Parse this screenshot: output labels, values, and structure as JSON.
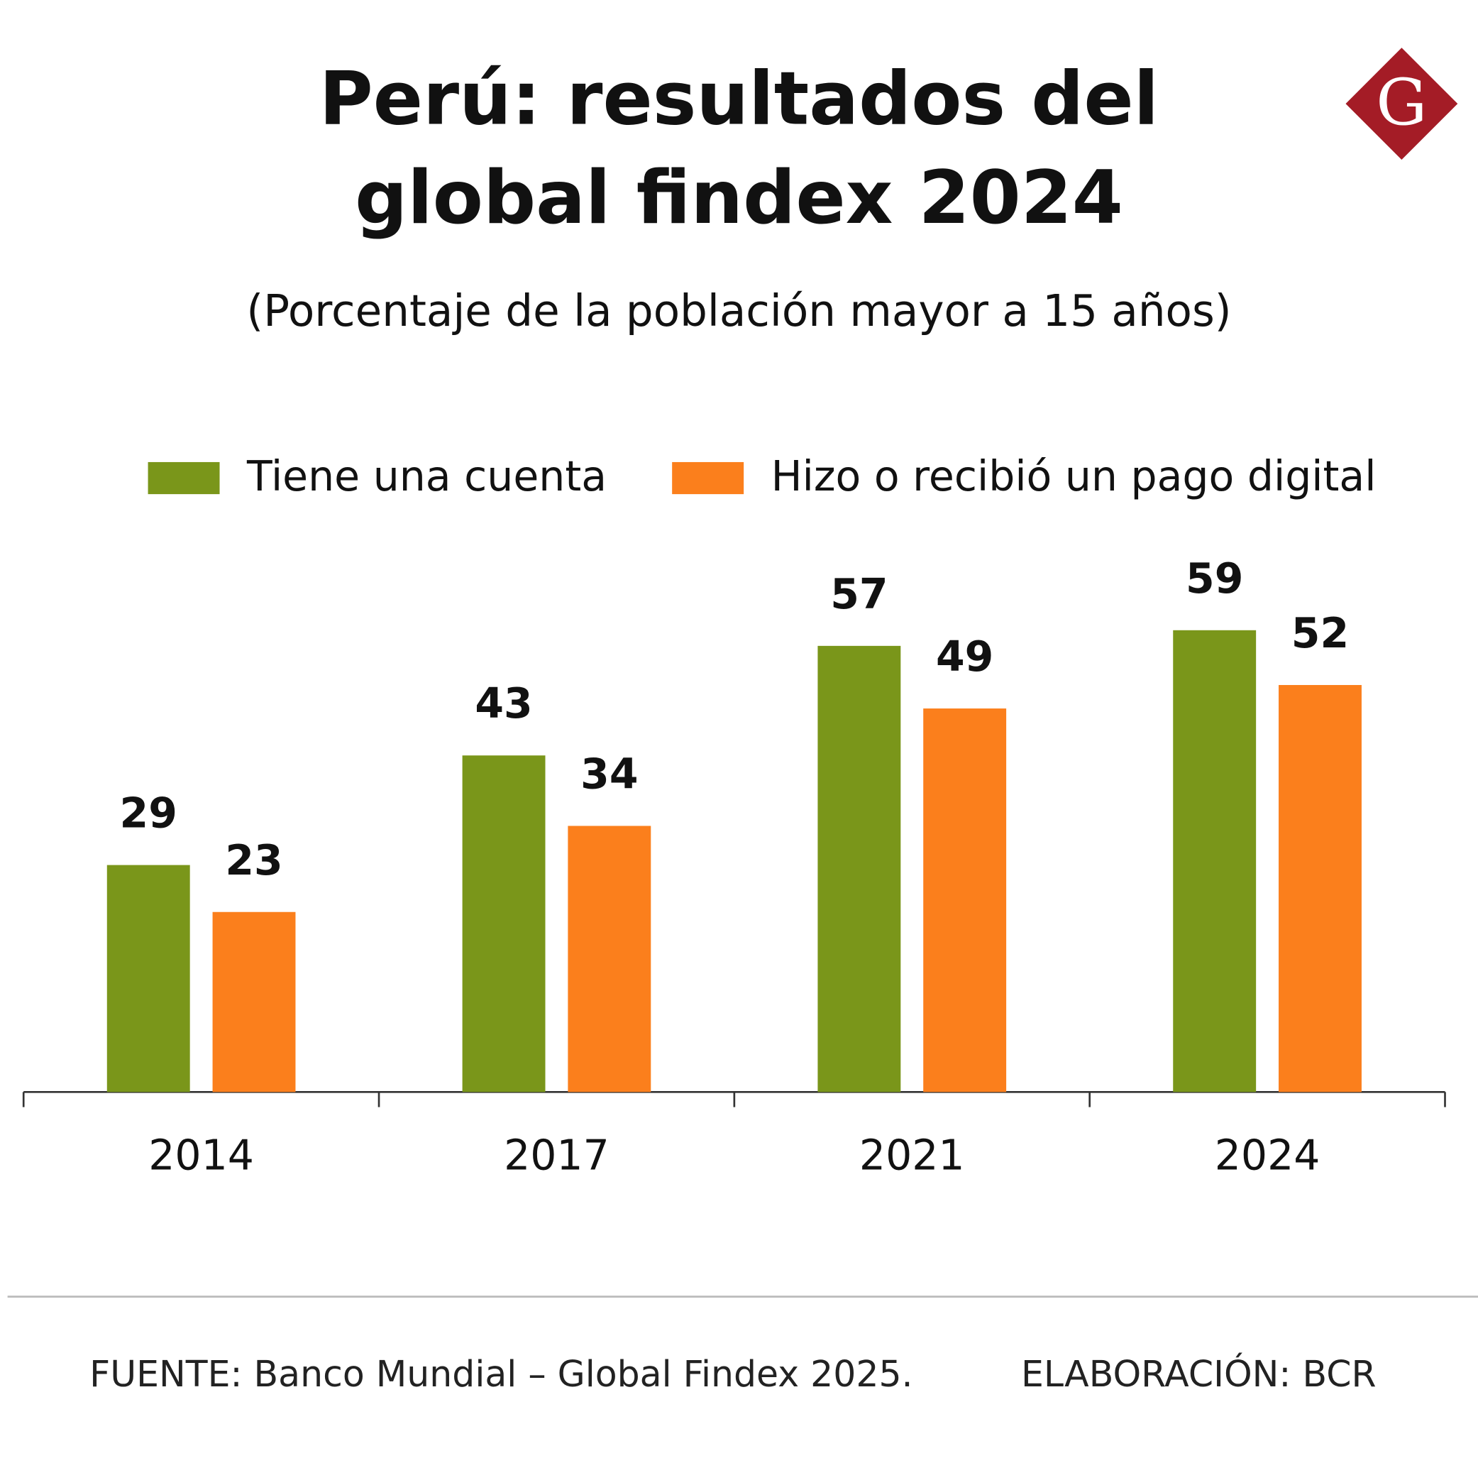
{
  "chart_data": {
    "type": "bar",
    "title": [
      "Perú: resultados del",
      "global findex 2024"
    ],
    "subtitle": "(Porcentaje de la población mayor a 15 años)",
    "categories": [
      "2014",
      "2017",
      "2021",
      "2024"
    ],
    "series": [
      {
        "name": "Tiene una cuenta",
        "color": "#7a961a",
        "values": [
          29,
          43,
          57,
          59
        ]
      },
      {
        "name": "Hizo o recibió un pago digital",
        "color": "#fb7f1c",
        "values": [
          23,
          34,
          49,
          52
        ]
      }
    ],
    "ylim": [
      0,
      100
    ],
    "source": "FUENTE: Banco Mundial – Global Findex 2025.",
    "credit": "ELABORACIÓN: BCR",
    "logo": "G"
  }
}
